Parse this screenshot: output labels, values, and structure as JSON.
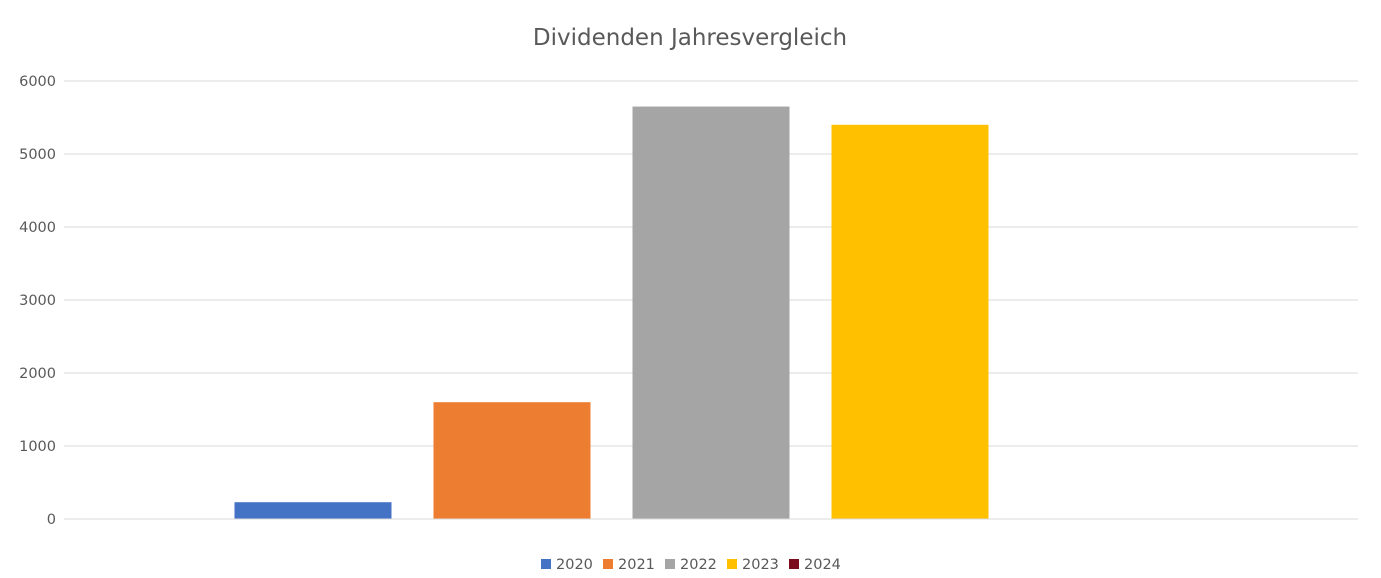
{
  "chart_data": {
    "type": "bar",
    "title": "Dividenden Jahresvergleich",
    "xlabel": "",
    "ylabel": "",
    "ylim": [
      0,
      6000
    ],
    "yticks": [
      0,
      1000,
      2000,
      3000,
      4000,
      5000,
      6000
    ],
    "grid": true,
    "legend_position": "bottom",
    "categories": [
      ""
    ],
    "series": [
      {
        "name": "2020",
        "color": "#4472C4",
        "values": [
          230
        ]
      },
      {
        "name": "2021",
        "color": "#ED7D31",
        "values": [
          1600
        ]
      },
      {
        "name": "2022",
        "color": "#A5A5A5",
        "values": [
          5650
        ]
      },
      {
        "name": "2023",
        "color": "#FFC000",
        "values": [
          5400
        ]
      },
      {
        "name": "2024",
        "color": "#7B0C1E",
        "values": [
          0
        ]
      }
    ]
  }
}
